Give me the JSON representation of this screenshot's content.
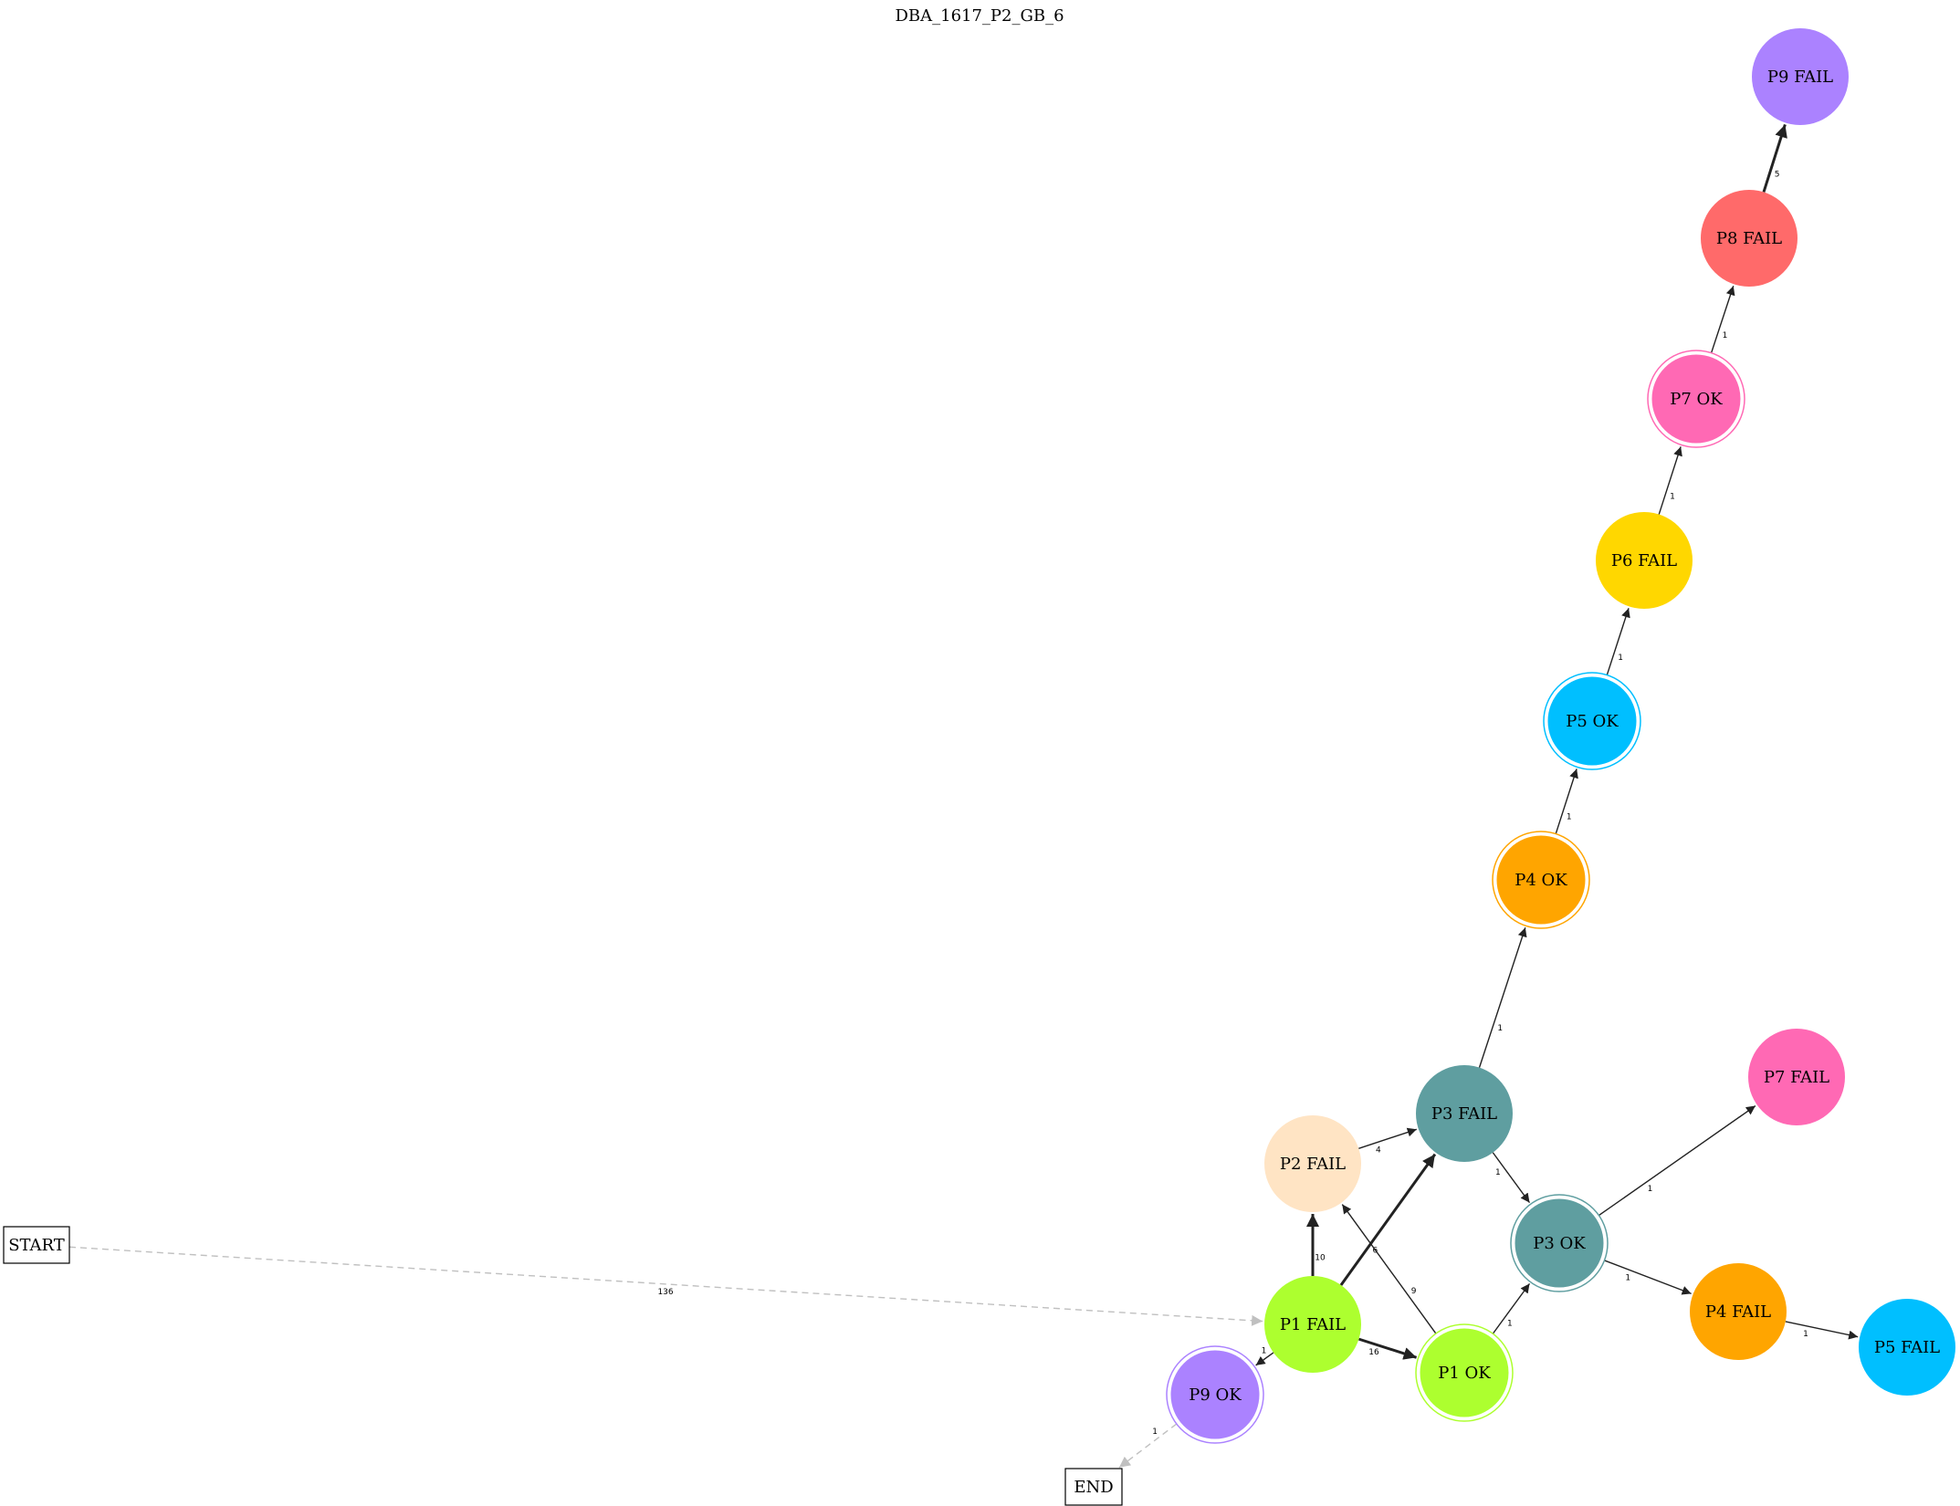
{
  "title": "DBA_1617_P2_GB_6",
  "nodes": [
    {
      "id": "START",
      "label": "START",
      "shape": "box"
    },
    {
      "id": "END",
      "label": "END",
      "shape": "box"
    },
    {
      "id": "P1FAIL",
      "label": "P1 FAIL",
      "shape": "circle",
      "color": "#adff2f"
    },
    {
      "id": "P1OK",
      "label": "P1 OK",
      "shape": "doublecircle",
      "color": "#adff2f"
    },
    {
      "id": "P2FAIL",
      "label": "P2 FAIL",
      "shape": "circle",
      "color": "#ffe4c4"
    },
    {
      "id": "P3FAIL",
      "label": "P3 FAIL",
      "shape": "circle",
      "color": "#5f9ea0"
    },
    {
      "id": "P3OK",
      "label": "P3 OK",
      "shape": "doublecircle",
      "color": "#5f9ea0"
    },
    {
      "id": "P4OK",
      "label": "P4 OK",
      "shape": "doublecircle",
      "color": "#ffa500"
    },
    {
      "id": "P4FAIL",
      "label": "P4 FAIL",
      "shape": "circle",
      "color": "#ffa500"
    },
    {
      "id": "P5OK",
      "label": "P5 OK",
      "shape": "doublecircle",
      "color": "#00bfff"
    },
    {
      "id": "P5FAIL",
      "label": "P5 FAIL",
      "shape": "circle",
      "color": "#00bfff"
    },
    {
      "id": "P6FAIL",
      "label": "P6 FAIL",
      "shape": "circle",
      "color": "#ffd700"
    },
    {
      "id": "P7OK",
      "label": "P7 OK",
      "shape": "doublecircle",
      "color": "#ff69b4"
    },
    {
      "id": "P7FAIL",
      "label": "P7 FAIL",
      "shape": "circle",
      "color": "#ff69b4"
    },
    {
      "id": "P8FAIL",
      "label": "P8 FAIL",
      "shape": "circle",
      "color": "#ff6a6a"
    },
    {
      "id": "P9FAIL",
      "label": "P9 FAIL",
      "shape": "circle",
      "color": "#ab82ff"
    },
    {
      "id": "P9OK",
      "label": "P9 OK",
      "shape": "doublecircle",
      "color": "#ab82ff"
    }
  ],
  "edges": [
    {
      "from": "START",
      "to": "P1FAIL",
      "label": "136",
      "style": "dashed"
    },
    {
      "from": "P1FAIL",
      "to": "P2FAIL",
      "label": "10",
      "style": "bold"
    },
    {
      "from": "P1FAIL",
      "to": "P3FAIL",
      "label": "6",
      "style": "bold"
    },
    {
      "from": "P1FAIL",
      "to": "P1OK",
      "label": "16",
      "style": "bold"
    },
    {
      "from": "P1FAIL",
      "to": "P9OK",
      "label": "1",
      "style": "solid"
    },
    {
      "from": "P1OK",
      "to": "P2FAIL",
      "label": "9",
      "style": "solid"
    },
    {
      "from": "P1OK",
      "to": "P3OK",
      "label": "1",
      "style": "solid"
    },
    {
      "from": "P2FAIL",
      "to": "P3FAIL",
      "label": "4",
      "style": "solid"
    },
    {
      "from": "P3FAIL",
      "to": "P4OK",
      "label": "1",
      "style": "solid"
    },
    {
      "from": "P3FAIL",
      "to": "P3OK",
      "label": "1",
      "style": "solid"
    },
    {
      "from": "P3OK",
      "to": "P7FAIL",
      "label": "1",
      "style": "solid"
    },
    {
      "from": "P3OK",
      "to": "P4FAIL",
      "label": "1",
      "style": "solid"
    },
    {
      "from": "P4FAIL",
      "to": "P5FAIL",
      "label": "1",
      "style": "solid"
    },
    {
      "from": "P4OK",
      "to": "P5OK",
      "label": "1",
      "style": "solid"
    },
    {
      "from": "P5OK",
      "to": "P6FAIL",
      "label": "1",
      "style": "solid"
    },
    {
      "from": "P6FAIL",
      "to": "P7OK",
      "label": "1",
      "style": "solid"
    },
    {
      "from": "P7OK",
      "to": "P8FAIL",
      "label": "1",
      "style": "solid"
    },
    {
      "from": "P8FAIL",
      "to": "P9FAIL",
      "label": "5",
      "style": "bold"
    },
    {
      "from": "P9OK",
      "to": "END",
      "label": "1",
      "style": "dashed"
    }
  ]
}
